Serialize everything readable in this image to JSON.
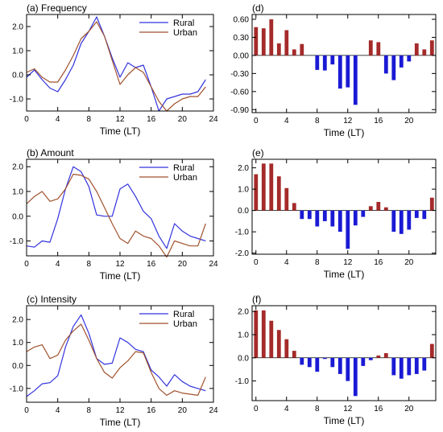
{
  "figure": {
    "series_colors": {
      "Rural": "#3333dd",
      "Urban": "#a0522d"
    },
    "bar_colors": {
      "positive": "#a52a2a",
      "negative": "#1a1ad4"
    }
  },
  "chart_data": [
    {
      "id": "a",
      "type": "line",
      "title": "(a) Frequency",
      "xlabel": "Time (LT)",
      "ylabel": "",
      "xlim": [
        0,
        24
      ],
      "ylim": [
        -1.5,
        2.5
      ],
      "xticks": [
        0,
        4,
        8,
        12,
        16,
        20,
        24
      ],
      "yticks": [
        -1.0,
        0.0,
        1.0,
        2.0
      ],
      "ytick_labels": [
        "-1.0",
        "0.0",
        "1.0",
        "2.0"
      ],
      "legend": "top-right",
      "x": [
        0,
        1,
        2,
        3,
        4,
        5,
        6,
        7,
        8,
        9,
        10,
        11,
        12,
        13,
        14,
        15,
        16,
        17,
        18,
        19,
        20,
        21,
        22,
        23
      ],
      "series": [
        {
          "name": "Rural",
          "values": [
            -0.1,
            0.2,
            -0.2,
            -0.55,
            -0.7,
            -0.2,
            0.4,
            1.3,
            1.8,
            2.4,
            1.6,
            0.7,
            -0.1,
            0.5,
            0.3,
            0.4,
            -0.5,
            -1.5,
            -1.0,
            -0.9,
            -0.8,
            -0.8,
            -0.7,
            -0.2
          ]
        },
        {
          "name": "Urban",
          "values": [
            0.1,
            0.25,
            -0.1,
            -0.3,
            -0.3,
            0.2,
            0.8,
            1.5,
            1.8,
            2.2,
            1.6,
            0.6,
            -0.4,
            0.0,
            0.3,
            0.1,
            -0.5,
            -1.1,
            -1.5,
            -1.2,
            -1.0,
            -0.9,
            -0.9,
            -0.5
          ]
        }
      ]
    },
    {
      "id": "b",
      "type": "line",
      "title": "(b) Amount",
      "xlabel": "Time (LT)",
      "ylabel": "",
      "xlim": [
        0,
        24
      ],
      "ylim": [
        -1.6,
        2.3
      ],
      "xticks": [
        0,
        4,
        8,
        12,
        16,
        20,
        24
      ],
      "yticks": [
        -1.0,
        0.0,
        1.0,
        2.0
      ],
      "ytick_labels": [
        "-1.0",
        "0.0",
        "1.0",
        "2.0"
      ],
      "legend": "top-right",
      "x": [
        0,
        1,
        2,
        3,
        4,
        5,
        6,
        7,
        8,
        9,
        10,
        11,
        12,
        13,
        14,
        15,
        16,
        17,
        18,
        19,
        20,
        21,
        22,
        23
      ],
      "series": [
        {
          "name": "Rural",
          "values": [
            -1.2,
            -1.25,
            -1.0,
            -1.05,
            -0.1,
            1.1,
            2.0,
            1.8,
            1.2,
            0.05,
            0.0,
            0.0,
            1.1,
            1.3,
            0.8,
            0.2,
            -0.1,
            -0.8,
            -1.3,
            -0.3,
            -0.6,
            -0.8,
            -0.9,
            -1.0
          ]
        },
        {
          "name": "Urban",
          "values": [
            0.5,
            0.8,
            1.0,
            0.6,
            0.7,
            1.1,
            1.7,
            1.65,
            1.5,
            1.0,
            0.35,
            -0.3,
            -0.9,
            -1.1,
            -0.6,
            -0.8,
            -0.9,
            -1.2,
            -1.65,
            -1.0,
            -1.1,
            -1.2,
            -1.2,
            -0.3
          ]
        }
      ]
    },
    {
      "id": "c",
      "type": "line",
      "title": "(c) Intensity",
      "xlabel": "Time (LT)",
      "ylabel": "",
      "xlim": [
        0,
        24
      ],
      "ylim": [
        -1.6,
        2.6
      ],
      "xticks": [
        0,
        4,
        8,
        12,
        16,
        20,
        24
      ],
      "yticks": [
        -1.0,
        0.0,
        1.0,
        2.0
      ],
      "ytick_labels": [
        "-1.0",
        "0.0",
        "1.0",
        "2.0"
      ],
      "legend": "top-right",
      "x": [
        0,
        1,
        2,
        3,
        4,
        5,
        6,
        7,
        8,
        9,
        10,
        11,
        12,
        13,
        14,
        15,
        16,
        17,
        18,
        19,
        20,
        21,
        22,
        23
      ],
      "series": [
        {
          "name": "Rural",
          "values": [
            -1.35,
            -1.1,
            -0.8,
            -0.75,
            -0.45,
            0.8,
            1.7,
            2.2,
            1.4,
            0.3,
            0.05,
            0.1,
            1.2,
            1.0,
            0.7,
            0.6,
            -0.2,
            -0.5,
            -0.9,
            -0.4,
            -0.7,
            -0.9,
            -1.0,
            -1.1
          ]
        },
        {
          "name": "Urban",
          "values": [
            0.6,
            0.8,
            0.9,
            0.3,
            0.45,
            1.1,
            1.5,
            1.8,
            1.1,
            0.3,
            -0.3,
            -0.55,
            -0.1,
            0.2,
            0.6,
            0.55,
            -0.3,
            -1.0,
            -1.3,
            -1.1,
            -1.2,
            -1.25,
            -1.3,
            -0.5
          ]
        }
      ]
    },
    {
      "id": "d",
      "type": "bar",
      "title": "(d)",
      "xlabel": "Time (LT)",
      "ylabel": "",
      "xlim": [
        -0.5,
        23.5
      ],
      "ylim": [
        -0.95,
        0.68
      ],
      "xticks": [
        0,
        4,
        8,
        12,
        16,
        20
      ],
      "yticks": [
        0.6,
        0.3,
        0.0,
        -0.3,
        -0.6,
        -0.9
      ],
      "ytick_labels": [
        "0.60",
        "0.30",
        "0.00",
        "-0.30",
        "-0.60",
        "-0.90"
      ],
      "x": [
        0,
        1,
        2,
        3,
        4,
        5,
        6,
        7,
        8,
        9,
        10,
        11,
        12,
        13,
        14,
        15,
        16,
        17,
        18,
        19,
        20,
        21,
        22,
        23
      ],
      "values": [
        0.47,
        0.45,
        0.6,
        0.2,
        0.42,
        0.1,
        0.19,
        0.0,
        -0.24,
        -0.25,
        -0.15,
        -0.55,
        -0.53,
        -0.82,
        0.0,
        0.25,
        0.22,
        -0.3,
        -0.41,
        -0.2,
        -0.1,
        0.2,
        0.1,
        0.25
      ]
    },
    {
      "id": "e",
      "type": "bar",
      "title": "(e)",
      "xlabel": "Time (LT)",
      "ylabel": "",
      "xlim": [
        -0.5,
        23.5
      ],
      "ylim": [
        -2.05,
        2.4
      ],
      "xticks": [
        0,
        4,
        8,
        12,
        16,
        20
      ],
      "yticks": [
        2.0,
        1.0,
        0.0,
        -1.0,
        -2.0
      ],
      "ytick_labels": [
        "2.0",
        "1.0",
        "0.0",
        "-1.0",
        "-2.0"
      ],
      "x": [
        0,
        1,
        2,
        3,
        4,
        5,
        6,
        7,
        8,
        9,
        10,
        11,
        12,
        13,
        14,
        15,
        16,
        17,
        18,
        19,
        20,
        21,
        22,
        23
      ],
      "values": [
        1.7,
        2.2,
        2.2,
        1.6,
        1.05,
        0.35,
        -0.4,
        -0.4,
        -0.75,
        -0.5,
        -0.75,
        -1.0,
        -1.8,
        -0.7,
        -0.3,
        0.2,
        0.4,
        0.15,
        -1.0,
        -1.1,
        -0.9,
        -0.35,
        -0.4,
        0.6
      ]
    },
    {
      "id": "f",
      "type": "bar",
      "title": "(f)",
      "xlabel": "Time (LT)",
      "ylabel": "",
      "xlim": [
        -0.5,
        23.5
      ],
      "ylim": [
        -1.85,
        2.25
      ],
      "xticks": [
        0,
        4,
        8,
        12,
        16,
        20
      ],
      "yticks": [
        2.0,
        1.0,
        0.0,
        -1.0
      ],
      "ytick_labels": [
        "2.0",
        "1.0",
        "0.0",
        "-1.0"
      ],
      "x": [
        0,
        1,
        2,
        3,
        4,
        5,
        6,
        7,
        8,
        9,
        10,
        11,
        12,
        13,
        14,
        15,
        16,
        17,
        18,
        19,
        20,
        21,
        22,
        23
      ],
      "values": [
        2.05,
        2.05,
        1.6,
        1.2,
        0.8,
        0.3,
        -0.3,
        -0.4,
        -0.6,
        -0.05,
        -0.4,
        -0.7,
        -1.0,
        -1.65,
        -0.35,
        -0.1,
        0.1,
        0.2,
        -0.75,
        -0.9,
        -0.75,
        -0.7,
        -0.55,
        0.6
      ]
    }
  ]
}
